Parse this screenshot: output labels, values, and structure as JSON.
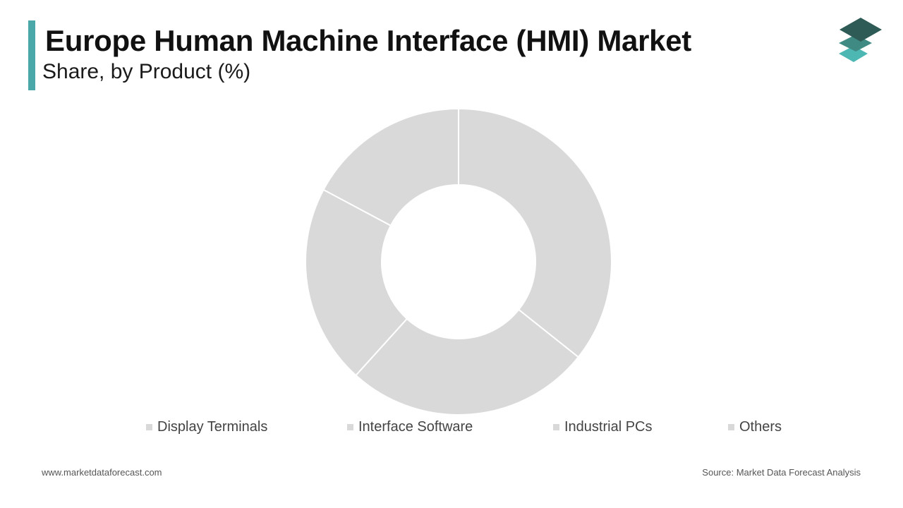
{
  "header": {
    "title": "Europe Human Machine Interface (HMI) Market",
    "subtitle": "Share, by Product (%)"
  },
  "footer": {
    "website": "www.marketdataforecast.com",
    "source": "Source: Market Data Forecast Analysis"
  },
  "logo": {
    "icon": "stacked-layers-icon"
  },
  "colors": {
    "accent": "#4aa8a8",
    "slice": "#d9d9d9",
    "slice_border": "#ffffff",
    "legend_swatch": "#d9d9d9",
    "logo_top": "#2e5b55",
    "logo_mid": "#3f8a83",
    "logo_bottom": "#4db7b3"
  },
  "chart_data": {
    "type": "pie",
    "variant": "donut",
    "title": "Europe Human Machine Interface (HMI) Market",
    "subtitle": "Share, by Product (%)",
    "categories": [
      "Display Terminals",
      "Interface Software",
      "Industrial PCs",
      "Others"
    ],
    "values": [
      35.7,
      26.0,
      21.1,
      17.2
    ],
    "unit": "%",
    "legend": "bottom"
  }
}
